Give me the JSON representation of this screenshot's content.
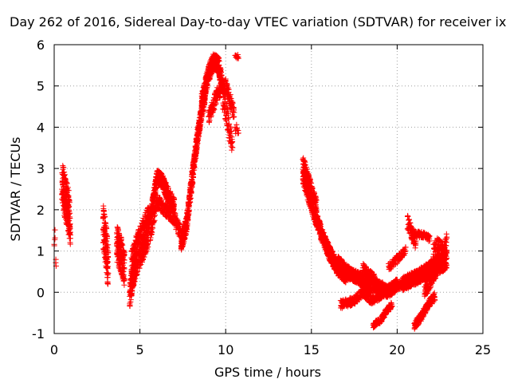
{
  "chart_data": {
    "type": "scatter",
    "title": "Day 262 of 2016, Sidereal Day-to-day VTEC variation (SDTVAR) for receiver ix",
    "xlabel": "GPS time / hours",
    "ylabel": "SDTVAR / TECUs",
    "xlim": [
      0,
      25
    ],
    "ylim": [
      -1,
      6
    ],
    "xticks": [
      "0",
      "5",
      "10",
      "15",
      "20",
      "25"
    ],
    "yticks": [
      "-1",
      "0",
      "1",
      "2",
      "3",
      "4",
      "5",
      "6"
    ],
    "grid": true,
    "marker": "+",
    "series_color": "#ff0000",
    "segments": [
      {
        "x0": 0.0,
        "x1": 0.1,
        "anchors": [
          [
            0.0,
            1.2
          ],
          [
            0.05,
            1.4
          ],
          [
            0.1,
            0.7
          ]
        ],
        "step": 0.05,
        "noise": 0.25,
        "count": 3
      },
      {
        "x0": 0.45,
        "x1": 0.95,
        "anchors": [
          [
            0.45,
            2.6
          ],
          [
            0.6,
            2.2
          ],
          [
            0.75,
            2.0
          ],
          [
            0.95,
            1.5
          ]
        ],
        "step": 0.006,
        "noise": 0.8,
        "count": 2
      },
      {
        "x0": 0.5,
        "x1": 0.9,
        "anchors": [
          [
            0.5,
            3.0
          ],
          [
            0.7,
            2.6
          ],
          [
            0.9,
            2.3
          ]
        ],
        "step": 0.01,
        "noise": 0.25,
        "count": 1
      },
      {
        "x0": 2.85,
        "x1": 3.15,
        "anchors": [
          [
            2.85,
            1.6
          ],
          [
            3.0,
            1.2
          ],
          [
            3.15,
            0.6
          ]
        ],
        "step": 0.005,
        "noise": 1.1,
        "count": 2
      },
      {
        "x0": 3.65,
        "x1": 4.1,
        "anchors": [
          [
            3.65,
            1.2
          ],
          [
            3.9,
            0.9
          ],
          [
            4.1,
            0.6
          ]
        ],
        "step": 0.005,
        "noise": 0.9,
        "count": 2
      },
      {
        "x0": 4.4,
        "x1": 4.7,
        "anchors": [
          [
            4.4,
            -0.1
          ],
          [
            4.55,
            0.3
          ],
          [
            4.7,
            0.6
          ]
        ],
        "step": 0.006,
        "noise": 0.6,
        "count": 2
      },
      {
        "x0": 4.5,
        "x1": 5.5,
        "anchors": [
          [
            4.5,
            0.5
          ],
          [
            4.8,
            0.9
          ],
          [
            5.0,
            1.1
          ],
          [
            5.3,
            1.4
          ],
          [
            5.5,
            1.6
          ]
        ],
        "step": 0.005,
        "noise": 1.0,
        "count": 2
      },
      {
        "x0": 5.5,
        "x1": 7.0,
        "anchors": [
          [
            5.5,
            1.6
          ],
          [
            5.8,
            2.3
          ],
          [
            6.0,
            2.8
          ],
          [
            6.3,
            2.7
          ],
          [
            6.6,
            2.4
          ],
          [
            7.0,
            2.1
          ]
        ],
        "step": 0.006,
        "noise": 0.35,
        "count": 2
      },
      {
        "x0": 5.6,
        "x1": 7.5,
        "anchors": [
          [
            5.6,
            1.4
          ],
          [
            6.0,
            2.2
          ],
          [
            6.5,
            2.0
          ],
          [
            7.0,
            1.8
          ],
          [
            7.5,
            1.3
          ]
        ],
        "step": 0.008,
        "noise": 0.35,
        "count": 1
      },
      {
        "x0": 7.4,
        "x1": 8.8,
        "anchors": [
          [
            7.4,
            1.2
          ],
          [
            7.7,
            1.6
          ],
          [
            8.0,
            2.6
          ],
          [
            8.3,
            3.6
          ],
          [
            8.6,
            4.4
          ],
          [
            8.8,
            4.8
          ]
        ],
        "step": 0.005,
        "noise": 0.4,
        "count": 2
      },
      {
        "x0": 8.6,
        "x1": 9.8,
        "anchors": [
          [
            8.6,
            4.6
          ],
          [
            9.0,
            5.3
          ],
          [
            9.3,
            5.6
          ],
          [
            9.6,
            5.5
          ],
          [
            9.8,
            5.0
          ]
        ],
        "step": 0.005,
        "noise": 0.4,
        "count": 2
      },
      {
        "x0": 9.0,
        "x1": 10.5,
        "anchors": [
          [
            9.0,
            4.2
          ],
          [
            9.5,
            4.8
          ],
          [
            10.0,
            5.0
          ],
          [
            10.3,
            4.6
          ],
          [
            10.5,
            4.3
          ]
        ],
        "step": 0.008,
        "noise": 0.35,
        "count": 1
      },
      {
        "x0": 9.8,
        "x1": 10.4,
        "anchors": [
          [
            9.8,
            4.8
          ],
          [
            10.1,
            4.2
          ],
          [
            10.4,
            3.6
          ]
        ],
        "step": 0.008,
        "noise": 0.6,
        "count": 1
      },
      {
        "x0": 10.55,
        "x1": 10.75,
        "anchors": [
          [
            10.55,
            5.7
          ],
          [
            10.75,
            5.7
          ]
        ],
        "step": 0.02,
        "noise": 0.15,
        "count": 1
      },
      {
        "x0": 10.55,
        "x1": 10.75,
        "anchors": [
          [
            10.55,
            4.0
          ],
          [
            10.75,
            3.8
          ]
        ],
        "step": 0.02,
        "noise": 0.3,
        "count": 1
      },
      {
        "x0": 14.5,
        "x1": 15.3,
        "anchors": [
          [
            14.5,
            3.0
          ],
          [
            14.7,
            2.7
          ],
          [
            15.0,
            2.3
          ],
          [
            15.3,
            1.9
          ]
        ],
        "step": 0.005,
        "noise": 0.7,
        "count": 2
      },
      {
        "x0": 15.2,
        "x1": 17.0,
        "anchors": [
          [
            15.2,
            1.9
          ],
          [
            15.6,
            1.4
          ],
          [
            16.0,
            1.0
          ],
          [
            16.5,
            0.6
          ],
          [
            17.0,
            0.4
          ]
        ],
        "step": 0.006,
        "noise": 0.35,
        "count": 2
      },
      {
        "x0": 17.0,
        "x1": 20.0,
        "anchors": [
          [
            17.0,
            0.5
          ],
          [
            17.5,
            0.4
          ],
          [
            18.0,
            0.3
          ],
          [
            18.5,
            0.2
          ],
          [
            19.0,
            0.1
          ],
          [
            19.5,
            0.0
          ],
          [
            20.0,
            0.2
          ]
        ],
        "step": 0.008,
        "noise": 0.3,
        "count": 2
      },
      {
        "x0": 16.7,
        "x1": 20.5,
        "anchors": [
          [
            16.7,
            -0.3
          ],
          [
            17.5,
            -0.2
          ],
          [
            18.0,
            0.0
          ],
          [
            18.5,
            -0.2
          ],
          [
            19.0,
            -0.1
          ],
          [
            19.5,
            0.1
          ],
          [
            20.5,
            0.2
          ]
        ],
        "step": 0.01,
        "noise": 0.2,
        "count": 1
      },
      {
        "x0": 16.5,
        "x1": 18.5,
        "anchors": [
          [
            16.5,
            0.8
          ],
          [
            17.0,
            0.6
          ],
          [
            17.5,
            0.4
          ],
          [
            18.0,
            0.2
          ],
          [
            18.5,
            0.0
          ]
        ],
        "step": 0.01,
        "noise": 0.2,
        "count": 1
      },
      {
        "x0": 18.0,
        "x1": 19.5,
        "anchors": [
          [
            18.0,
            0.6
          ],
          [
            18.5,
            0.4
          ],
          [
            19.0,
            0.2
          ],
          [
            19.5,
            0.0
          ]
        ],
        "step": 0.01,
        "noise": 0.2,
        "count": 1
      },
      {
        "x0": 18.6,
        "x1": 19.7,
        "anchors": [
          [
            18.6,
            -0.8
          ],
          [
            19.0,
            -0.7
          ],
          [
            19.3,
            -0.5
          ],
          [
            19.7,
            -0.3
          ]
        ],
        "step": 0.01,
        "noise": 0.15,
        "count": 1
      },
      {
        "x0": 19.5,
        "x1": 20.5,
        "anchors": [
          [
            19.5,
            0.6
          ],
          [
            20.0,
            0.8
          ],
          [
            20.5,
            1.0
          ]
        ],
        "step": 0.012,
        "noise": 0.2,
        "count": 1
      },
      {
        "x0": 20.3,
        "x1": 22.5,
        "anchors": [
          [
            20.3,
            0.2
          ],
          [
            20.8,
            0.3
          ],
          [
            21.3,
            0.4
          ],
          [
            22.0,
            0.6
          ],
          [
            22.5,
            0.8
          ]
        ],
        "step": 0.008,
        "noise": 0.35,
        "count": 2
      },
      {
        "x0": 20.6,
        "x1": 21.1,
        "anchors": [
          [
            20.6,
            1.7
          ],
          [
            20.8,
            1.5
          ],
          [
            21.1,
            1.2
          ]
        ],
        "step": 0.008,
        "noise": 0.35,
        "count": 1
      },
      {
        "x0": 21.0,
        "x1": 21.9,
        "anchors": [
          [
            21.0,
            1.4
          ],
          [
            21.5,
            1.4
          ],
          [
            21.9,
            1.3
          ]
        ],
        "step": 0.01,
        "noise": 0.15,
        "count": 1
      },
      {
        "x0": 21.0,
        "x1": 22.2,
        "anchors": [
          [
            21.0,
            -0.8
          ],
          [
            21.4,
            -0.6
          ],
          [
            21.8,
            -0.3
          ],
          [
            22.2,
            -0.1
          ]
        ],
        "step": 0.008,
        "noise": 0.2,
        "count": 1
      },
      {
        "x0": 21.6,
        "x1": 22.9,
        "anchors": [
          [
            21.6,
            0.1
          ],
          [
            22.0,
            0.4
          ],
          [
            22.4,
            0.7
          ],
          [
            22.9,
            0.8
          ]
        ],
        "step": 0.008,
        "noise": 0.5,
        "count": 2
      },
      {
        "x0": 22.1,
        "x1": 22.9,
        "anchors": [
          [
            22.1,
            1.0
          ],
          [
            22.4,
            1.2
          ],
          [
            22.7,
            1.0
          ],
          [
            22.9,
            1.3
          ]
        ],
        "step": 0.01,
        "noise": 0.3,
        "count": 1
      }
    ]
  }
}
